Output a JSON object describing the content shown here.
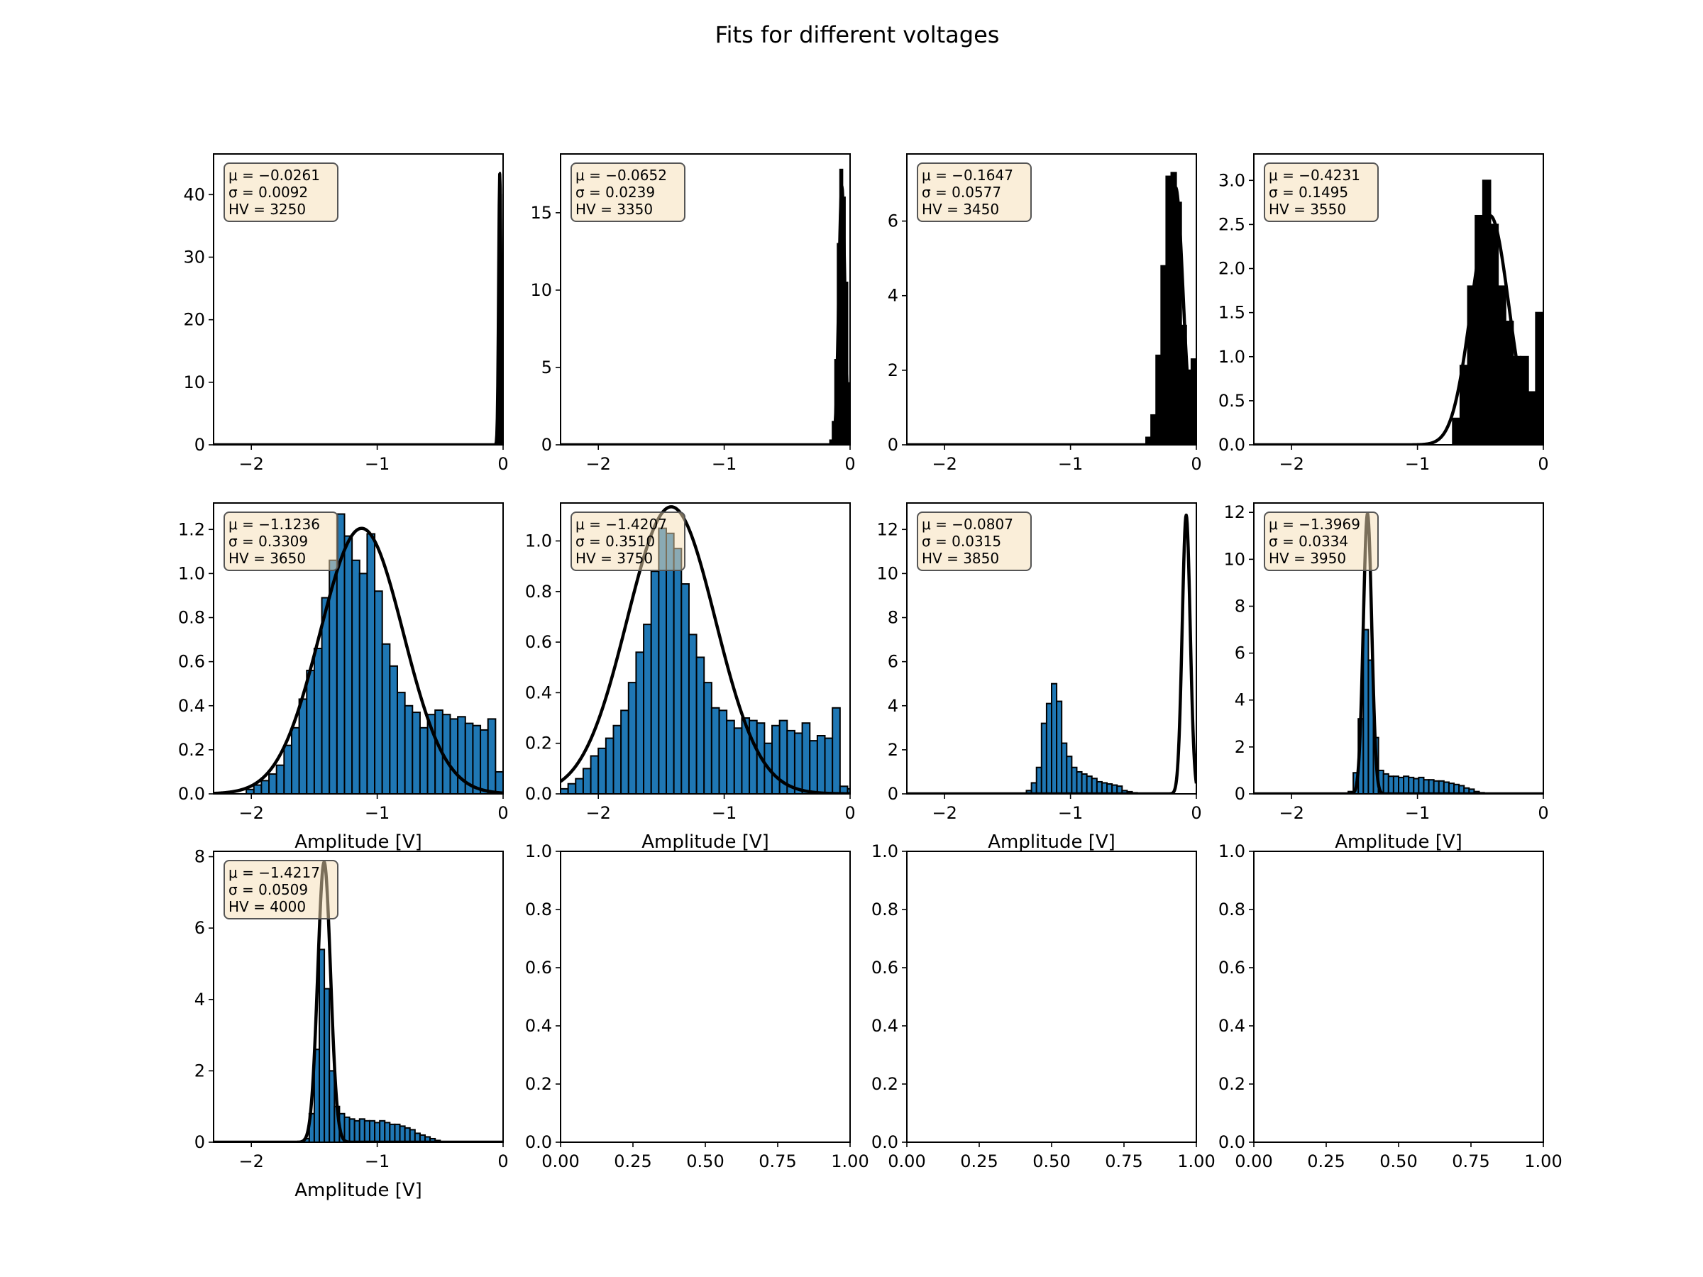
{
  "chart_data": {
    "type": "bar",
    "title": "Fits for different voltages",
    "layout_grid": {
      "rows": 3,
      "cols": 4
    },
    "panels": [
      {
        "type": "bar",
        "xlabel": "",
        "xlim": [
          -2.3,
          0
        ],
        "ylim": [
          0,
          46.5
        ],
        "xticks": [
          -2,
          -1,
          0
        ],
        "xtick_labels": [
          "−2",
          "−1",
          "0"
        ],
        "yticks": [
          0,
          10,
          20,
          30,
          40
        ],
        "ytick_labels": [
          "0",
          "10",
          "20",
          "30",
          "40"
        ],
        "bar_color": "#000000",
        "mu": -0.0261,
        "sigma": 0.0092,
        "hv": 3250,
        "annotation": [
          "μ = −0.0261",
          "σ = 0.0092",
          "HV = 3250"
        ],
        "histogram": {
          "bin_edges": [
            -0.052,
            -0.046,
            -0.04,
            -0.034,
            -0.028,
            -0.022,
            -0.016,
            -0.01,
            -0.004,
            0.0
          ],
          "counts": [
            0.4,
            3.5,
            14.5,
            33.0,
            43.5,
            40.0,
            28.0,
            14.0,
            5.0
          ]
        },
        "fit_curve": {
          "mu": -0.0261,
          "sigma": 0.0092,
          "amplitude": 43.4
        }
      },
      {
        "type": "bar",
        "xlabel": "",
        "xlim": [
          -2.3,
          0
        ],
        "ylim": [
          0,
          18.8
        ],
        "xticks": [
          -2,
          -1,
          0
        ],
        "xtick_labels": [
          "−2",
          "−1",
          "0"
        ],
        "yticks": [
          0,
          5,
          10,
          15
        ],
        "ytick_labels": [
          "0",
          "5",
          "10",
          "15"
        ],
        "bar_color": "#000000",
        "mu": -0.0652,
        "sigma": 0.0239,
        "hv": 3350,
        "annotation": [
          "μ = −0.0652",
          "σ = 0.0239",
          "HV = 3350"
        ],
        "histogram": {
          "bin_edges": [
            -0.16,
            -0.14,
            -0.12,
            -0.1,
            -0.08,
            -0.06,
            -0.04,
            -0.02,
            0.0
          ],
          "counts": [
            0.3,
            1.5,
            5.5,
            13.0,
            17.8,
            16.0,
            10.5,
            4.0
          ]
        },
        "fit_curve": {
          "mu": -0.0652,
          "sigma": 0.0239,
          "amplitude": 16.7
        }
      },
      {
        "type": "bar",
        "xlabel": "",
        "xlim": [
          -2.3,
          0
        ],
        "ylim": [
          0,
          7.8
        ],
        "xticks": [
          -2,
          -1,
          0
        ],
        "xtick_labels": [
          "−2",
          "−1",
          "0"
        ],
        "yticks": [
          0,
          2,
          4,
          6
        ],
        "ytick_labels": [
          "0",
          "2",
          "4",
          "6"
        ],
        "bar_color": "#000000",
        "mu": -0.1647,
        "sigma": 0.0577,
        "hv": 3450,
        "annotation": [
          "μ = −0.1647",
          "σ = 0.0577",
          "HV = 3450"
        ],
        "histogram": {
          "bin_edges": [
            -0.4,
            -0.36,
            -0.32,
            -0.28,
            -0.24,
            -0.2,
            -0.16,
            -0.12,
            -0.08,
            -0.04,
            0.0
          ],
          "counts": [
            0.2,
            0.8,
            2.4,
            4.8,
            7.2,
            7.3,
            6.5,
            3.2,
            2.0,
            2.3
          ]
        },
        "fit_curve": {
          "mu": -0.1647,
          "sigma": 0.0577,
          "amplitude": 6.9
        }
      },
      {
        "type": "bar",
        "xlabel": "",
        "xlim": [
          -2.3,
          0
        ],
        "ylim": [
          0,
          3.3
        ],
        "xticks": [
          -2,
          -1,
          0
        ],
        "xtick_labels": [
          "−2",
          "−1",
          "0"
        ],
        "yticks": [
          0,
          0.5,
          1.0,
          1.5,
          2.0,
          2.5,
          3.0
        ],
        "ytick_labels": [
          "0.0",
          "0.5",
          "1.0",
          "1.5",
          "2.0",
          "2.5",
          "3.0"
        ],
        "bar_color": "#000000",
        "mu": -0.4231,
        "sigma": 0.1495,
        "hv": 3550,
        "annotation": [
          "μ = −0.4231",
          "σ = 0.1495",
          "HV = 3550"
        ],
        "histogram": {
          "bin_edges": [
            -0.72,
            -0.66,
            -0.6,
            -0.54,
            -0.48,
            -0.42,
            -0.36,
            -0.3,
            -0.24,
            -0.18,
            -0.12,
            -0.06,
            0.0
          ],
          "counts": [
            0.3,
            0.9,
            1.8,
            2.6,
            3.0,
            2.5,
            1.8,
            1.4,
            1.0,
            1.0,
            0.6,
            1.5
          ]
        },
        "fit_curve": {
          "mu": -0.4231,
          "sigma": 0.1495,
          "amplitude": 2.6
        }
      },
      {
        "type": "bar",
        "xlabel": "Amplitude [V]",
        "xlim": [
          -2.3,
          0
        ],
        "ylim": [
          0,
          1.32
        ],
        "xticks": [
          -2,
          -1,
          0
        ],
        "xtick_labels": [
          "−2",
          "−1",
          "0"
        ],
        "yticks": [
          0,
          0.2,
          0.4,
          0.6,
          0.8,
          1.0,
          1.2
        ],
        "ytick_labels": [
          "0.0",
          "0.2",
          "0.4",
          "0.6",
          "0.8",
          "1.0",
          "1.2"
        ],
        "bar_color": "#1f77b4",
        "mu": -1.1236,
        "sigma": 0.3309,
        "hv": 3650,
        "annotation": [
          "μ = −1.1236",
          "σ = 0.3309",
          "HV = 3650"
        ],
        "histogram": {
          "bin_edges": [
            -2.04,
            -1.98,
            -1.92,
            -1.86,
            -1.8,
            -1.74,
            -1.68,
            -1.62,
            -1.56,
            -1.5,
            -1.44,
            -1.38,
            -1.32,
            -1.26,
            -1.2,
            -1.14,
            -1.08,
            -1.02,
            -0.96,
            -0.9,
            -0.84,
            -0.78,
            -0.72,
            -0.66,
            -0.6,
            -0.54,
            -0.48,
            -0.42,
            -0.36,
            -0.3,
            -0.24,
            -0.18,
            -0.12,
            -0.06,
            0.0
          ],
          "counts": [
            0.02,
            0.04,
            0.06,
            0.09,
            0.13,
            0.22,
            0.3,
            0.43,
            0.56,
            0.66,
            0.89,
            1.06,
            1.27,
            1.17,
            1.06,
            1.0,
            1.18,
            0.92,
            0.68,
            0.58,
            0.46,
            0.4,
            0.37,
            0.3,
            0.36,
            0.38,
            0.36,
            0.34,
            0.35,
            0.32,
            0.31,
            0.29,
            0.34,
            0.1
          ]
        },
        "fit_curve": {
          "mu": -1.1236,
          "sigma": 0.3309,
          "amplitude": 1.205
        }
      },
      {
        "type": "bar",
        "xlabel": "Amplitude [V]",
        "xlim": [
          -2.3,
          0
        ],
        "ylim": [
          0,
          1.15
        ],
        "xticks": [
          -2,
          -1,
          0
        ],
        "xtick_labels": [
          "−2",
          "−1",
          "0"
        ],
        "yticks": [
          0,
          0.2,
          0.4,
          0.6,
          0.8,
          1.0
        ],
        "ytick_labels": [
          "0.0",
          "0.2",
          "0.4",
          "0.6",
          "0.8",
          "1.0"
        ],
        "bar_color": "#1f77b4",
        "mu": -1.4207,
        "sigma": 0.351,
        "hv": 3750,
        "annotation": [
          "μ = −1.4207",
          "σ = 0.3510",
          "HV = 3750"
        ],
        "histogram": {
          "bin_edges": [
            -2.3,
            -2.24,
            -2.18,
            -2.12,
            -2.06,
            -2.0,
            -1.94,
            -1.88,
            -1.82,
            -1.76,
            -1.7,
            -1.64,
            -1.58,
            -1.52,
            -1.46,
            -1.4,
            -1.34,
            -1.28,
            -1.22,
            -1.16,
            -1.1,
            -1.04,
            -0.98,
            -0.92,
            -0.86,
            -0.8,
            -0.74,
            -0.68,
            -0.62,
            -0.56,
            -0.5,
            -0.44,
            -0.38,
            -0.32,
            -0.26,
            -0.2,
            -0.14,
            -0.08,
            -0.02,
            0.0
          ],
          "counts": [
            0.02,
            0.04,
            0.06,
            0.1,
            0.15,
            0.18,
            0.22,
            0.27,
            0.33,
            0.44,
            0.56,
            0.67,
            0.88,
            1.05,
            1.03,
            0.97,
            0.83,
            0.63,
            0.54,
            0.44,
            0.34,
            0.33,
            0.29,
            0.26,
            0.3,
            0.29,
            0.28,
            0.2,
            0.27,
            0.29,
            0.25,
            0.24,
            0.28,
            0.21,
            0.23,
            0.22,
            0.34,
            0.03,
            0.02
          ]
        },
        "fit_curve": {
          "mu": -1.4207,
          "sigma": 0.351,
          "amplitude": 1.135
        }
      },
      {
        "type": "bar",
        "xlabel": "Amplitude [V]",
        "xlim": [
          -2.3,
          0
        ],
        "ylim": [
          0,
          13.2
        ],
        "xticks": [
          -2,
          -1,
          0
        ],
        "xtick_labels": [
          "−2",
          "−1",
          "0"
        ],
        "yticks": [
          0,
          2,
          4,
          6,
          8,
          10,
          12
        ],
        "ytick_labels": [
          "0",
          "2",
          "4",
          "6",
          "8",
          "10",
          "12"
        ],
        "bar_color": "#1f77b4",
        "mu": -0.0807,
        "sigma": 0.0315,
        "hv": 3850,
        "annotation": [
          "μ = −0.0807",
          "σ = 0.0315",
          "HV = 3850"
        ],
        "histogram": {
          "bin_edges": [
            -1.35,
            -1.31,
            -1.27,
            -1.23,
            -1.19,
            -1.15,
            -1.11,
            -1.07,
            -1.03,
            -0.99,
            -0.95,
            -0.91,
            -0.87,
            -0.83,
            -0.79,
            -0.75,
            -0.71,
            -0.67,
            -0.63,
            -0.59,
            -0.55,
            -0.51,
            -0.47
          ],
          "counts": [
            0.15,
            0.5,
            1.2,
            3.2,
            4.1,
            5.0,
            4.2,
            2.3,
            1.7,
            1.2,
            1.0,
            0.9,
            0.8,
            0.7,
            0.55,
            0.5,
            0.45,
            0.4,
            0.35,
            0.15,
            0.1,
            0.05
          ]
        },
        "fit_curve": {
          "mu": -0.0807,
          "sigma": 0.0315,
          "amplitude": 12.65
        }
      },
      {
        "type": "bar",
        "xlabel": "Amplitude [V]",
        "xlim": [
          -2.3,
          0
        ],
        "ylim": [
          0,
          12.4
        ],
        "xticks": [
          -2,
          -1,
          0
        ],
        "xtick_labels": [
          "−2",
          "−1",
          "0"
        ],
        "yticks": [
          0,
          2,
          4,
          6,
          8,
          10,
          12
        ],
        "ytick_labels": [
          "0",
          "2",
          "4",
          "6",
          "8",
          "10",
          "12"
        ],
        "bar_color": "#1f77b4",
        "mu": -1.3969,
        "sigma": 0.0334,
        "hv": 3950,
        "annotation": [
          "μ = −1.3969",
          "σ = 0.0334",
          "HV = 3950"
        ],
        "histogram": {
          "bin_edges": [
            -1.55,
            -1.51,
            -1.47,
            -1.43,
            -1.39,
            -1.35,
            -1.31,
            -1.27,
            -1.23,
            -1.19,
            -1.15,
            -1.11,
            -1.07,
            -1.03,
            -0.99,
            -0.95,
            -0.91,
            -0.87,
            -0.83,
            -0.79,
            -0.75,
            -0.71,
            -0.67,
            -0.63,
            -0.59,
            -0.55,
            -0.51,
            -0.47
          ],
          "counts": [
            0.1,
            0.9,
            3.2,
            7.0,
            5.7,
            2.4,
            1.0,
            0.85,
            0.75,
            0.75,
            0.7,
            0.75,
            0.7,
            0.65,
            0.7,
            0.6,
            0.6,
            0.55,
            0.55,
            0.5,
            0.45,
            0.4,
            0.35,
            0.25,
            0.2,
            0.1,
            0.05
          ]
        },
        "fit_curve": {
          "mu": -1.3969,
          "sigma": 0.0334,
          "amplitude": 11.95
        }
      },
      {
        "type": "bar",
        "xlabel": "Amplitude [V]",
        "xlim": [
          -2.3,
          0
        ],
        "ylim": [
          0,
          8.15
        ],
        "xticks": [
          -2,
          -1,
          0
        ],
        "xtick_labels": [
          "−2",
          "−1",
          "0"
        ],
        "yticks": [
          0,
          2,
          4,
          6,
          8
        ],
        "ytick_labels": [
          "0",
          "2",
          "4",
          "6",
          "8"
        ],
        "bar_color": "#1f77b4",
        "mu": -1.4217,
        "sigma": 0.0509,
        "hv": 4000,
        "annotation": [
          "μ = −1.4217",
          "σ = 0.0509",
          "HV = 4000"
        ],
        "histogram": {
          "bin_edges": [
            -1.58,
            -1.54,
            -1.5,
            -1.46,
            -1.42,
            -1.38,
            -1.34,
            -1.3,
            -1.26,
            -1.22,
            -1.18,
            -1.14,
            -1.1,
            -1.06,
            -1.02,
            -0.98,
            -0.94,
            -0.9,
            -0.86,
            -0.82,
            -0.78,
            -0.74,
            -0.7,
            -0.66,
            -0.62,
            -0.58,
            -0.54,
            -0.5,
            -0.46
          ],
          "counts": [
            0.1,
            0.8,
            2.6,
            5.4,
            4.3,
            2.0,
            1.0,
            0.8,
            0.7,
            0.65,
            0.6,
            0.65,
            0.6,
            0.6,
            0.55,
            0.6,
            0.55,
            0.5,
            0.5,
            0.45,
            0.4,
            0.35,
            0.25,
            0.2,
            0.15,
            0.1,
            0.05,
            0.02
          ]
        },
        "fit_curve": {
          "mu": -1.4217,
          "sigma": 0.0509,
          "amplitude": 7.85
        }
      },
      {
        "type": "bar",
        "xlabel": "",
        "xlim": [
          0,
          1
        ],
        "ylim": [
          0,
          1
        ],
        "xticks": [
          0,
          0.25,
          0.5,
          0.75,
          1.0
        ],
        "xtick_labels": [
          "0.00",
          "0.25",
          "0.50",
          "0.75",
          "1.00"
        ],
        "yticks": [
          0,
          0.2,
          0.4,
          0.6,
          0.8,
          1.0
        ],
        "ytick_labels": [
          "0.0",
          "0.2",
          "0.4",
          "0.6",
          "0.8",
          "1.0"
        ],
        "empty": true
      },
      {
        "type": "bar",
        "xlabel": "",
        "xlim": [
          0,
          1
        ],
        "ylim": [
          0,
          1
        ],
        "xticks": [
          0,
          0.25,
          0.5,
          0.75,
          1.0
        ],
        "xtick_labels": [
          "0.00",
          "0.25",
          "0.50",
          "0.75",
          "1.00"
        ],
        "yticks": [
          0,
          0.2,
          0.4,
          0.6,
          0.8,
          1.0
        ],
        "ytick_labels": [
          "0.0",
          "0.2",
          "0.4",
          "0.6",
          "0.8",
          "1.0"
        ],
        "empty": true
      },
      {
        "type": "bar",
        "xlabel": "",
        "xlim": [
          0,
          1
        ],
        "ylim": [
          0,
          1
        ],
        "xticks": [
          0,
          0.25,
          0.5,
          0.75,
          1.0
        ],
        "xtick_labels": [
          "0.00",
          "0.25",
          "0.50",
          "0.75",
          "1.00"
        ],
        "yticks": [
          0,
          0.2,
          0.4,
          0.6,
          0.8,
          1.0
        ],
        "ytick_labels": [
          "0.0",
          "0.2",
          "0.4",
          "0.6",
          "0.8",
          "1.0"
        ],
        "empty": true
      }
    ],
    "colors": {
      "annotation_fill": "#f5deb3",
      "annotation_edge": "#555555",
      "fit_line": "#000000",
      "bar_edge": "#000000"
    }
  }
}
